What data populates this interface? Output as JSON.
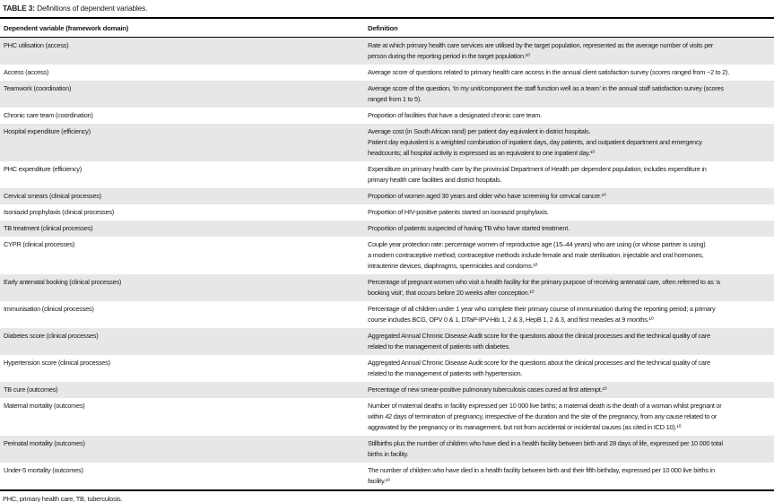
{
  "title": {
    "label": "TABLE 3:",
    "text": "Definitions of dependent variables."
  },
  "header": {
    "col1": "Dependent variable (framework domain)",
    "col2": "Definition"
  },
  "rows": [
    {
      "variable": "PHC utilisation (access)",
      "definition": [
        "Rate at which primary health care services are utilised by the target population, represented as the average number of visits per",
        "person during the reporting period in the target population.¹⁰"
      ]
    },
    {
      "variable": "Access (access)",
      "definition": [
        "Average score of questions related to primary health care access in the annual client satisfaction survey (scores ranged from −2 to 2)."
      ]
    },
    {
      "variable": "Teamwork (coordination)",
      "definition": [
        "Average score of the question, ‘In my unit/component the staff function well as a team’ in the annual staff satisfaction survey (scores",
        "ranged from 1 to 5)."
      ]
    },
    {
      "variable": "Chronic care team (coordination)",
      "definition": [
        "Proportion of facilities that have a designated chronic care team."
      ]
    },
    {
      "variable": "Hospital expenditure (efficiency)",
      "definition": [
        "Average cost (in South African rand) per patient day equivalent in district hospitals.",
        "Patient day equivalent is a weighted combination of inpatient days, day patients, and outpatient department and emergency",
        "headcounts; all hospital activity is expressed as an equivalent to one inpatient day.¹⁰"
      ]
    },
    {
      "variable": "PHC expenditure (efficiency)",
      "definition": [
        "Expenditure on primary health care by the provincial Department of Health per dependent population; includes expenditure in",
        "primary health care facilities and district hospitals."
      ]
    },
    {
      "variable": "Cervical smears (clinical processes)",
      "definition": [
        "Proportion of women aged 30 years and older who have screening for cervical cancer.¹⁰"
      ]
    },
    {
      "variable": "Isoniazid prophylaxis (clinical processes)",
      "definition": [
        "Proportion of HIV-positive patients started on isoniazid prophylaxis."
      ]
    },
    {
      "variable": "TB treatment (clinical processes)",
      "definition": [
        "Proportion of patients suspected of having TB who have started treatment."
      ]
    },
    {
      "variable": "CYPR (clinical processes)",
      "definition": [
        "Couple year protection rate: percentage women of reproductive age (15–44 years) who are using (or whose partner is using)",
        "a modern contraceptive method; contraceptive methods include female and male sterilisation, injectable and oral hormones,",
        "intrauterine devices, diaphragms, spermicides and condoms.¹⁰"
      ]
    },
    {
      "variable": "Early antenatal booking (clinical processes)",
      "definition": [
        "Percentage of pregnant women who visit a health facility for the primary purpose of receiving antenatal care, often referred to as ‘a",
        "booking visit’, that occurs before 20 weeks after conception.¹⁰"
      ]
    },
    {
      "variable": "Immunisation (clinical processes)",
      "definition": [
        "Percentage of all children under 1 year who complete their primary course of immunisation during the reporting period; a primary",
        "course includes BCG, OPV 0 & 1, DTaP-IPV-Hib 1, 2 & 3, HepB 1, 2 & 3, and first measles at 9 months.¹⁰"
      ]
    },
    {
      "variable": "Diabetes score (clinical processes)",
      "definition": [
        "Aggregated Annual Chronic Disease Audit score for the questions about the clinical processes and the technical quality of care",
        "related to the management of patients with diabetes."
      ]
    },
    {
      "variable": "Hypertension score (clinical processes)",
      "definition": [
        "Aggregated Annual Chronic Disease Audit score for the questions about the clinical processes and the technical quality of care",
        "related to the management of patients with hypertension."
      ]
    },
    {
      "variable": "TB cure (outcomes)",
      "definition": [
        "Percentage of new smear-positive pulmonary tuberculosis cases cured at first attempt.¹⁰"
      ]
    },
    {
      "variable": "Maternal mortality (outcomes)",
      "definition": [
        "Number of maternal deaths in facility expressed per 10 000 live births; a maternal death is the death of a woman whilst pregnant or",
        "within 42 days of termination of pregnancy, irrespective of the duration and the site of the pregnancy, from any cause related to or",
        "aggravated by the pregnancy or its management, but not from accidental or incidental causes (as cited in ICD 10).¹⁰"
      ]
    },
    {
      "variable": "Perinatal mortality (outcomes)",
      "definition": [
        "Stillbirths plus the number of children who have died in a health facility between birth and 28 days of life, expressed per 10 000 total",
        "births in facility."
      ]
    },
    {
      "variable": "Under-5 mortality (outcomes)",
      "definition": [
        "The number of children who have died in a health facility between birth and their fifth birthday, expressed per 10 000 live births in",
        "facility.¹⁰"
      ]
    }
  ],
  "footnote": "PHC, primary health care, TB, tuberculosis.",
  "colors": {
    "row_shade": "#e7e7e7",
    "text": "#1a1a1a",
    "rule": "#000000",
    "background": "#ffffff"
  }
}
